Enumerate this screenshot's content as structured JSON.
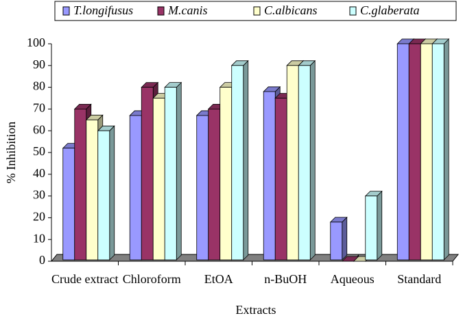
{
  "chart_data": {
    "type": "bar3d",
    "categories": [
      "Crude extract",
      "Chloroform",
      "EtOA",
      "n-BuOH",
      "Aqueous",
      "Standard"
    ],
    "series": [
      {
        "name": "T.longifusus",
        "color": "#9999ff",
        "values": [
          52,
          67,
          67,
          78,
          18,
          100
        ]
      },
      {
        "name": "M.canis",
        "color": "#993366",
        "values": [
          70,
          80,
          70,
          75,
          0,
          100
        ]
      },
      {
        "name": "C.albicans",
        "color": "#ffffcc",
        "values": [
          65,
          75,
          80,
          90,
          0,
          100
        ]
      },
      {
        "name": "C.glaberata",
        "color": "#ccffff",
        "values": [
          60,
          80,
          90,
          90,
          30,
          100
        ]
      }
    ],
    "ylim": [
      0,
      100
    ],
    "yticks": [
      0,
      10,
      20,
      30,
      40,
      50,
      60,
      70,
      80,
      90,
      100
    ],
    "y_label": "% Inhibition",
    "x_label": "Extracts",
    "legend": "top",
    "grid": false
  }
}
